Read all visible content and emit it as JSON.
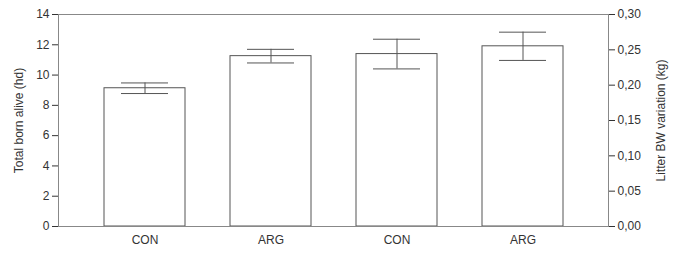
{
  "chart_data": {
    "type": "bar",
    "categories": [
      "CON",
      "ARG",
      "CON",
      "ARG"
    ],
    "ylabel": "Total born alive (hd)",
    "y2label": "Litter BW variation (kg)",
    "ylim": [
      0,
      14
    ],
    "yticks": [
      0,
      2,
      4,
      6,
      8,
      10,
      12,
      14
    ],
    "y2lim": [
      0,
      0.3
    ],
    "y2ticks": [
      {
        "value": 0,
        "label": "0,00"
      },
      {
        "value": 0.05,
        "label": "0,05"
      },
      {
        "value": 0.1,
        "label": "0,10"
      },
      {
        "value": 0.15,
        "label": "0,15"
      },
      {
        "value": 0.2,
        "label": "0,20"
      },
      {
        "value": 0.25,
        "label": "0,25"
      },
      {
        "value": 0.3,
        "label": "0,30"
      }
    ],
    "color": "#ffffff",
    "series": [
      {
        "values": [
          9.13,
          11.25,
          null,
          null
        ],
        "errors": [
          0.35,
          0.45,
          null,
          null
        ]
      },
      {
        "axis": "y2",
        "values": [
          null,
          null,
          0.244,
          0.255
        ],
        "errors": [
          null,
          null,
          0.021,
          0.02
        ]
      }
    ]
  }
}
